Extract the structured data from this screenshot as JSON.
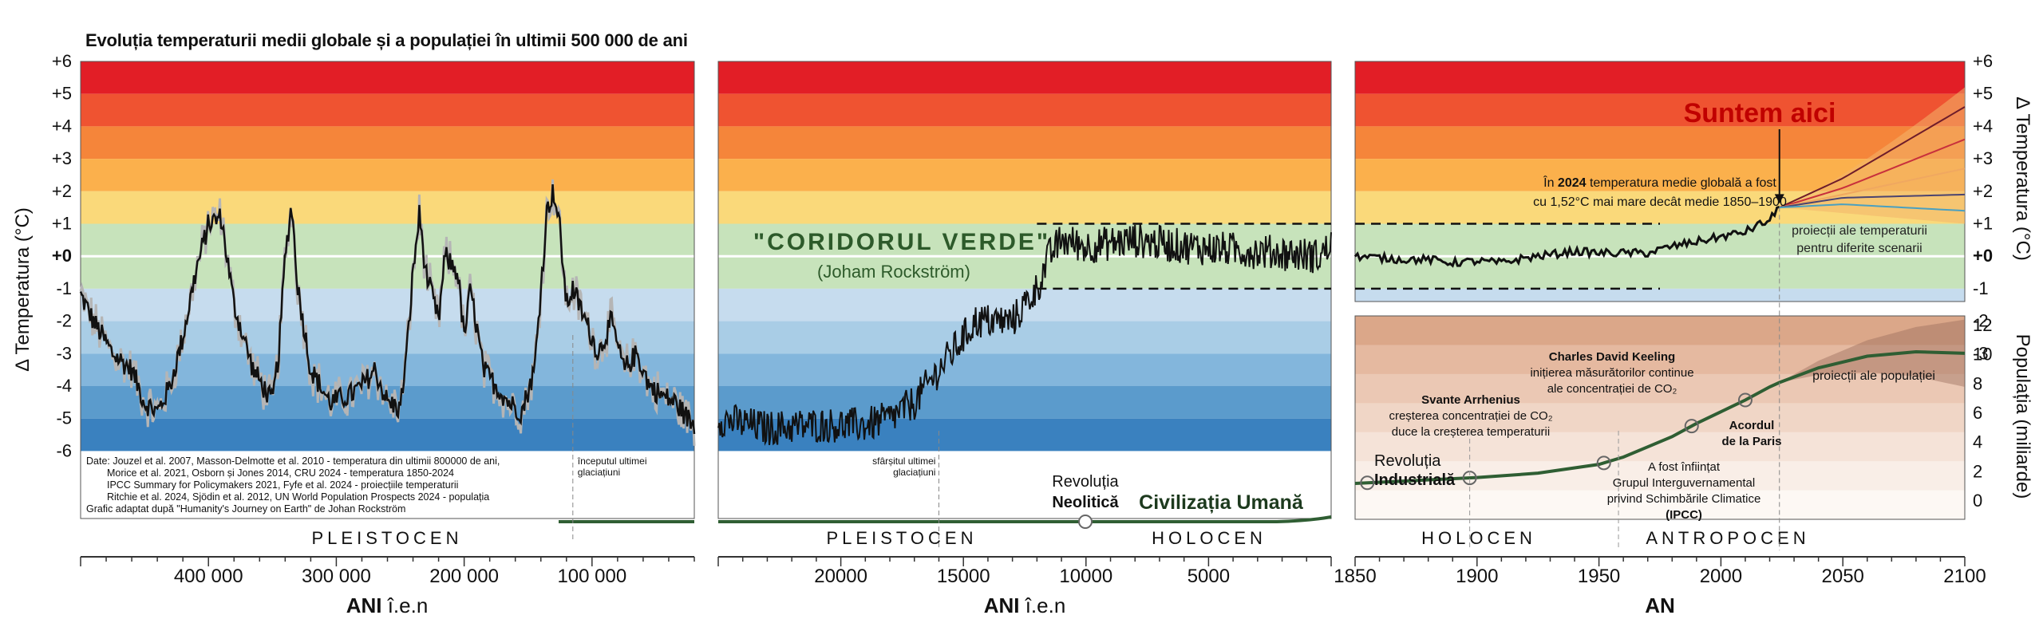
{
  "title": "Evoluția temperaturii medii globale și a populației în ultimii 500 000 de ani",
  "colors": {
    "bands": [
      "#e21e26",
      "#ef5331",
      "#f5853a",
      "#fbb04c",
      "#fad97a",
      "#c7e3bb",
      "#c7e3bb",
      "#c6dcee",
      "#a9cde6",
      "#83b6dc",
      "#5b9bcc",
      "#3a81bf",
      "#1f67ad"
    ],
    "zero_line": "#ffffff",
    "temp_line": "#111111",
    "temp_noise": "#b5b5b5",
    "pop_line": "#2f5e33",
    "pop_bands": [
      "#dba789",
      "#e5b9a0",
      "#ebc8b4",
      "#f0d6c6",
      "#f5e3d8",
      "#f9eee7",
      "#fdf8f4"
    ],
    "green_text": "#2d5a2a",
    "red_text": "#c00000",
    "scenario_colors": [
      "#6e1c2a",
      "#c8303c",
      "#f0a860",
      "#4b4470",
      "#4aa0c0"
    ]
  },
  "temp_axis": {
    "label": "Δ Temperatura (°C)",
    "ticks": [
      "+6",
      "+5",
      "+4",
      "+3",
      "+2",
      "+1",
      "+0",
      "-1",
      "-2",
      "-3",
      "-4",
      "-5",
      "-6"
    ]
  },
  "pop_axis": {
    "label": "Populația (miliarde)",
    "ticks": [
      "12",
      "10",
      "8",
      "6",
      "4",
      "2",
      "0"
    ]
  },
  "panel1": {
    "x_ticks": [
      "400 000",
      "300 000",
      "200 000",
      "100 000"
    ],
    "xlabel_bold": "ANI",
    "xlabel_rest": " î.e.n",
    "era": "PLEISTOCEN",
    "marker_label": [
      "începutul ultimei",
      "glaciațiuni"
    ],
    "sources": [
      "Date: Jouzel et al. 2007, Masson-Delmotte et al. 2010 - temperatura din ultimii 800000 de ani,",
      "Morice et al. 2021, Osborn și Jones 2014, CRU 2024 - temperatura 1850-2024",
      "IPCC Summary for Policymakers 2021, Fyfe et al. 2024 - proiecțiile temperaturii",
      "Ritchie et al. 2024, Sjödin et al. 2012, UN World Population Prospects 2024 - populația",
      "Grafic adaptat după \"Humanity's Journey on Earth\" de Johan Rockström"
    ]
  },
  "panel2": {
    "x_ticks": [
      "20000",
      "15000",
      "10000",
      "5000"
    ],
    "xlabel_bold": "ANI",
    "xlabel_rest": " î.e.n",
    "era_left": "PLEISTOCEN",
    "era_right": "HOLOCEN",
    "corridor_title": "\"CORIDORUL VERDE\"",
    "corridor_sub": "(Joham Rockström)",
    "marker_label": [
      "sfârșitul ultimei",
      "glaciațiuni"
    ],
    "neolithic_1": "Revoluția",
    "neolithic_2": "Neolitică",
    "civilization": "Civilizația Umană"
  },
  "panel3": {
    "x_ticks": [
      "1850",
      "1900",
      "1950",
      "2000",
      "2050",
      "2100"
    ],
    "xlabel": "AN",
    "era_left": "HOLOCEN",
    "era_right": "ANTROPOCEN",
    "here": "Suntem aici",
    "note_1_pre": "În ",
    "note_1_bold": "2024",
    "note_1_post": " temperatura medie globală a fost",
    "note_2": "cu 1,52°C mai mare decât medie 1850–1900",
    "proj_temp": [
      "proiecții ale temperaturii",
      "pentru diferite scenarii"
    ],
    "proj_pop": "proiecții ale populației",
    "industrial_1": "Revoluția",
    "industrial_2": "Industrială",
    "arrhenius": [
      "Svante Arrhenius",
      "creșterea concentrației de CO₂",
      "duce la creșterea temperaturii"
    ],
    "keeling": [
      "Charles David Keeling",
      "inițierea măsurătorilor continue",
      "ale concentrației de CO₂"
    ],
    "paris": [
      "Acordul",
      "de la Paris"
    ],
    "ipcc": [
      "A fost înființat",
      "Grupul Interguvernamental",
      "privind Schimbările Climatice",
      "(IPCC)"
    ]
  },
  "chart_data": [
    {
      "type": "line",
      "title": "Evoluția temperaturii medii globale și a populației în ultimii 500 000 de ani",
      "xlabel": "ANI î.e.n",
      "ylabel": "Δ Temperatura (°C)",
      "xlim": [
        500000,
        20000
      ],
      "ylim": [
        -6,
        6
      ],
      "series": [
        {
          "x": [
            500000,
            490000,
            475000,
            460000,
            450000,
            440000,
            430000,
            420000,
            410000,
            400000,
            390000,
            380000,
            365000,
            350000,
            345000,
            340000,
            335000,
            330000,
            320000,
            305000,
            290000,
            280000,
            270000,
            260000,
            250000,
            245000,
            240000,
            235000,
            230000,
            220000,
            215000,
            205000,
            200000,
            195000,
            185000,
            175000,
            165000,
            155000,
            145000,
            140000,
            135000,
            130000,
            125000,
            120000,
            115000,
            105000,
            95000,
            85000,
            75000,
            65000,
            55000,
            45000,
            35000,
            25000,
            20000
          ],
          "values": [
            -1.2,
            -2.0,
            -3.0,
            -3.5,
            -4.5,
            -4.8,
            -4.0,
            -2.5,
            -0.5,
            1.0,
            1.2,
            -1.5,
            -3.5,
            -4.5,
            -3.0,
            0.0,
            1.6,
            -1.0,
            -3.5,
            -4.5,
            -4.3,
            -4.0,
            -3.5,
            -4.5,
            -4.7,
            -3.0,
            -0.5,
            1.3,
            -0.5,
            -2.0,
            0.0,
            -0.5,
            -2.5,
            -1.0,
            -3.5,
            -4.0,
            -4.5,
            -4.8,
            -3.5,
            -1.0,
            1.5,
            2.0,
            0.8,
            -1.5,
            -1.0,
            -2.0,
            -3.0,
            -2.0,
            -3.5,
            -3.0,
            -4.0,
            -4.3,
            -4.5,
            -5.0,
            -5.2
          ]
        }
      ]
    },
    {
      "type": "line",
      "xlabel": "ANI î.e.n",
      "ylabel": "Δ Temperatura (°C)",
      "xlim": [
        25000,
        0
      ],
      "ylim": [
        -6,
        6
      ],
      "series": [
        {
          "x": [
            25000,
            23000,
            21000,
            19000,
            18000,
            17000,
            16000,
            15000,
            14500,
            14000,
            13000,
            12500,
            12000,
            11500,
            11000,
            10000,
            8000,
            6000,
            4000,
            2000,
            500,
            0
          ],
          "values": [
            -5.0,
            -5.3,
            -5.2,
            -5.2,
            -5.0,
            -4.5,
            -3.5,
            -2.5,
            -2.0,
            -2.0,
            -2.0,
            -1.5,
            -1.0,
            0.0,
            0.5,
            0.3,
            0.5,
            0.3,
            0.2,
            0.1,
            0.0,
            0.3
          ]
        }
      ]
    },
    {
      "type": "line",
      "xlabel": "AN",
      "ylabel": "Δ Temperatura (°C)",
      "xlim": [
        1850,
        2100
      ],
      "ylim": [
        -6,
        6
      ],
      "series": [
        {
          "x": [
            1850,
            1860,
            1870,
            1880,
            1890,
            1900,
            1910,
            1920,
            1930,
            1940,
            1950,
            1960,
            1970,
            1980,
            1990,
            2000,
            2010,
            2015,
            2020,
            2024
          ],
          "values": [
            0.0,
            -0.05,
            -0.1,
            -0.1,
            -0.2,
            -0.15,
            -0.2,
            -0.05,
            0.05,
            0.15,
            0.1,
            0.1,
            0.1,
            0.3,
            0.45,
            0.6,
            0.75,
            0.95,
            1.1,
            1.52
          ]
        },
        {
          "x": [
            2024,
            2050,
            2100
          ],
          "values": [
            1.5,
            2.4,
            4.6
          ]
        },
        {
          "x": [
            2024,
            2050,
            2100
          ],
          "values": [
            1.5,
            2.1,
            3.6
          ]
        },
        {
          "x": [
            2024,
            2050,
            2100
          ],
          "values": [
            1.5,
            1.9,
            2.7
          ]
        },
        {
          "x": [
            2024,
            2050,
            2100
          ],
          "values": [
            1.5,
            1.8,
            1.9
          ]
        },
        {
          "x": [
            2024,
            2050,
            2100
          ],
          "values": [
            1.5,
            1.6,
            1.4
          ]
        }
      ]
    },
    {
      "type": "line",
      "xlabel": "AN",
      "ylabel": "Populația (miliarde)",
      "xlim": [
        1850,
        2100
      ],
      "ylim": [
        0,
        12
      ],
      "series": [
        {
          "x": [
            1850,
            1875,
            1900,
            1925,
            1950,
            1960,
            1970,
            1980,
            1990,
            2000,
            2010,
            2020,
            2024,
            2040,
            2060,
            2080,
            2100
          ],
          "values": [
            1.2,
            1.4,
            1.6,
            1.9,
            2.5,
            3.0,
            3.7,
            4.4,
            5.3,
            6.1,
            6.9,
            7.8,
            8.1,
            9.1,
            9.9,
            10.2,
            10.1
          ]
        }
      ]
    }
  ]
}
